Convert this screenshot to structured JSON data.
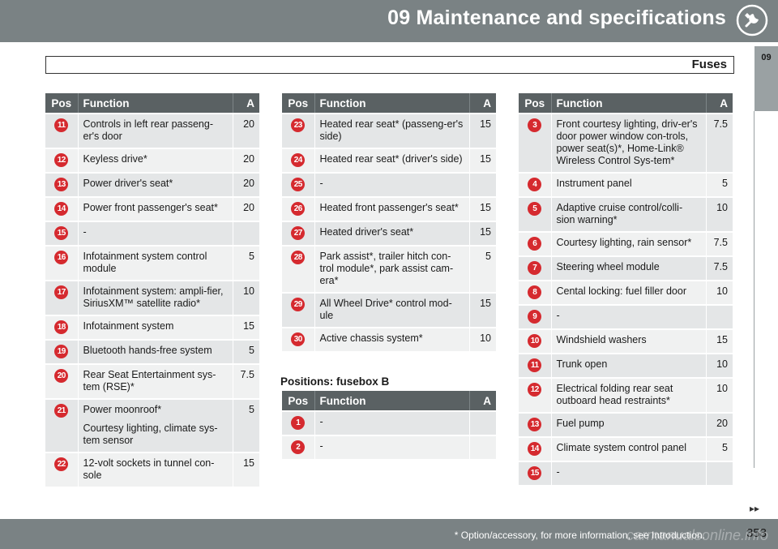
{
  "header": {
    "chapter_title": "09 Maintenance and specifications",
    "icon": "wrench-icon"
  },
  "section": {
    "title": "Fuses"
  },
  "side_tab": {
    "label": "09"
  },
  "table1": {
    "headers": [
      "Pos",
      "Function",
      "A"
    ],
    "rows": [
      {
        "pos": "11",
        "function": "Controls in left rear passeng-er's door",
        "amp": "20"
      },
      {
        "pos": "12",
        "function": "Keyless drive*",
        "amp": "20"
      },
      {
        "pos": "13",
        "function": "Power driver's seat*",
        "amp": "20"
      },
      {
        "pos": "14",
        "function": "Power front passenger's seat*",
        "amp": "20"
      },
      {
        "pos": "15",
        "function": "-",
        "amp": ""
      },
      {
        "pos": "16",
        "function": "Infotainment system control module",
        "amp": "5"
      },
      {
        "pos": "17",
        "function": "Infotainment system: ampli-fier, SiriusXM™ satellite radio*",
        "amp": "10"
      },
      {
        "pos": "18",
        "function": "Infotainment system",
        "amp": "15"
      },
      {
        "pos": "19",
        "function": "Bluetooth hands-free system",
        "amp": "5"
      },
      {
        "pos": "20",
        "function": "Rear Seat Entertainment sys-tem (RSE)*",
        "amp": "7.5"
      },
      {
        "pos": "21",
        "function": "Power moonroof*",
        "function2": "Courtesy lighting, climate sys-tem sensor",
        "amp": "5"
      },
      {
        "pos": "22",
        "function": "12-volt sockets in tunnel con-sole",
        "amp": "15"
      }
    ]
  },
  "table2": {
    "headers": [
      "Pos",
      "Function",
      "A"
    ],
    "rows": [
      {
        "pos": "23",
        "function": "Heated rear seat* (passeng-er's side)",
        "amp": "15"
      },
      {
        "pos": "24",
        "function": "Heated rear seat* (driver's side)",
        "amp": "15"
      },
      {
        "pos": "25",
        "function": "-",
        "amp": ""
      },
      {
        "pos": "26",
        "function": "Heated front passenger's seat*",
        "amp": "15"
      },
      {
        "pos": "27",
        "function": "Heated driver's seat*",
        "amp": "15"
      },
      {
        "pos": "28",
        "function": "Park assist*, trailer hitch con-trol module*, park assist cam-era*",
        "amp": "5"
      },
      {
        "pos": "29",
        "function": "All Wheel Drive* control mod-ule",
        "amp": "15"
      },
      {
        "pos": "30",
        "function": "Active chassis system*",
        "amp": "10"
      }
    ]
  },
  "fusebox_b": {
    "heading": "Positions: fusebox B",
    "headers": [
      "Pos",
      "Function",
      "A"
    ],
    "rows": [
      {
        "pos": "1",
        "function": "-",
        "amp": ""
      },
      {
        "pos": "2",
        "function": "-",
        "amp": ""
      }
    ]
  },
  "table3": {
    "headers": [
      "Pos",
      "Function",
      "A"
    ],
    "rows": [
      {
        "pos": "3",
        "function": "Front courtesy lighting, driv-er's door power window con-trols, power seat(s)*, Home-Link® Wireless Control Sys-tem*",
        "amp": "7.5"
      },
      {
        "pos": "4",
        "function": "Instrument panel",
        "amp": "5"
      },
      {
        "pos": "5",
        "function": "Adaptive cruise control/colli-sion warning*",
        "amp": "10"
      },
      {
        "pos": "6",
        "function": "Courtesy lighting, rain sensor*",
        "amp": "7.5"
      },
      {
        "pos": "7",
        "function": "Steering wheel module",
        "amp": "7.5"
      },
      {
        "pos": "8",
        "function": "Cental locking: fuel filler door",
        "amp": "10"
      },
      {
        "pos": "9",
        "function": "-",
        "amp": ""
      },
      {
        "pos": "10",
        "function": "Windshield washers",
        "amp": "15"
      },
      {
        "pos": "11",
        "function": "Trunk open",
        "amp": "10"
      },
      {
        "pos": "12",
        "function": "Electrical folding rear seat outboard head restraints*",
        "amp": "10"
      },
      {
        "pos": "13",
        "function": "Fuel pump",
        "amp": "20"
      },
      {
        "pos": "14",
        "function": "Climate system control panel",
        "amp": "5"
      },
      {
        "pos": "15",
        "function": "-",
        "amp": ""
      }
    ]
  },
  "footer": {
    "continue_arrows": "▸▸",
    "footnote": "* Option/accessory, for more information, see Introduction.",
    "page_number": "353",
    "watermark": "carmanualsonline.info"
  },
  "colors": {
    "header_bg": "#7a8284",
    "table_header_bg": "#5a6163",
    "pos_circle": "#d52a2f"
  }
}
